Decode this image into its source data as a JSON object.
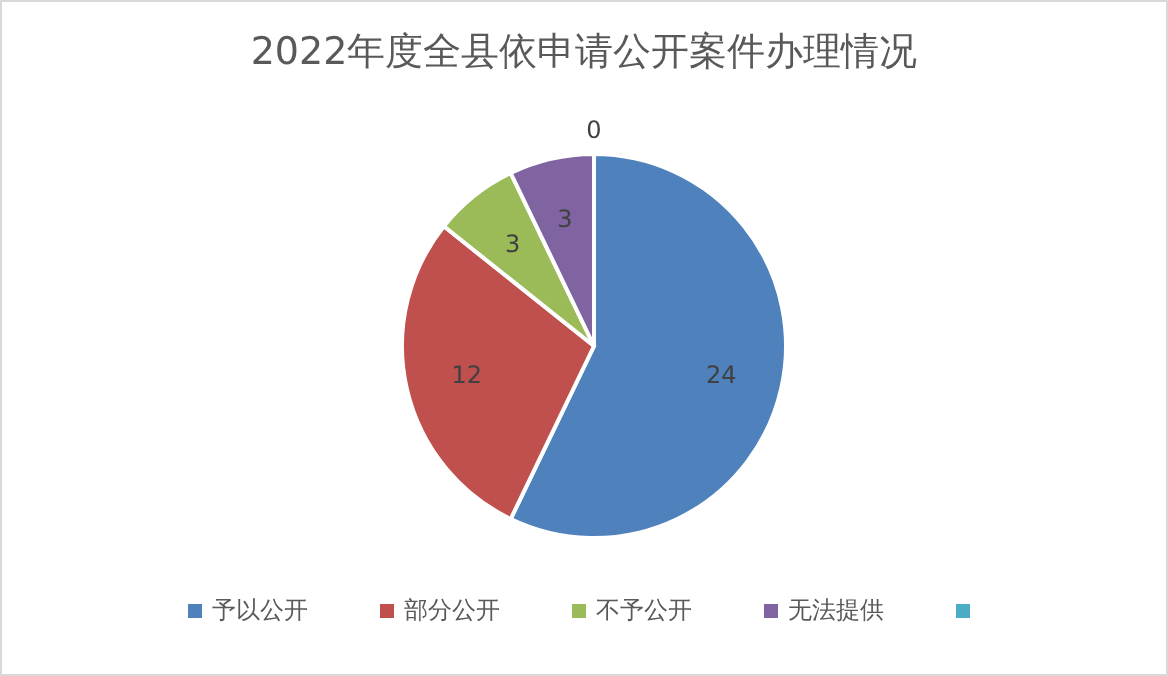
{
  "chart_data": {
    "type": "pie",
    "title": "2022年度全县依申请公开案件办理情况",
    "categories": [
      "予以公开",
      "部分公开",
      "不予公开",
      "无法提供",
      null
    ],
    "values": [
      24,
      12,
      3,
      3,
      0
    ],
    "colors": [
      "#4f81bd",
      "#c0504d",
      "#9bbb59",
      "#8064a2",
      "#4bacc6"
    ],
    "value_labels": [
      "24",
      "12",
      "3",
      "3",
      "0"
    ],
    "legend": "bottom"
  }
}
